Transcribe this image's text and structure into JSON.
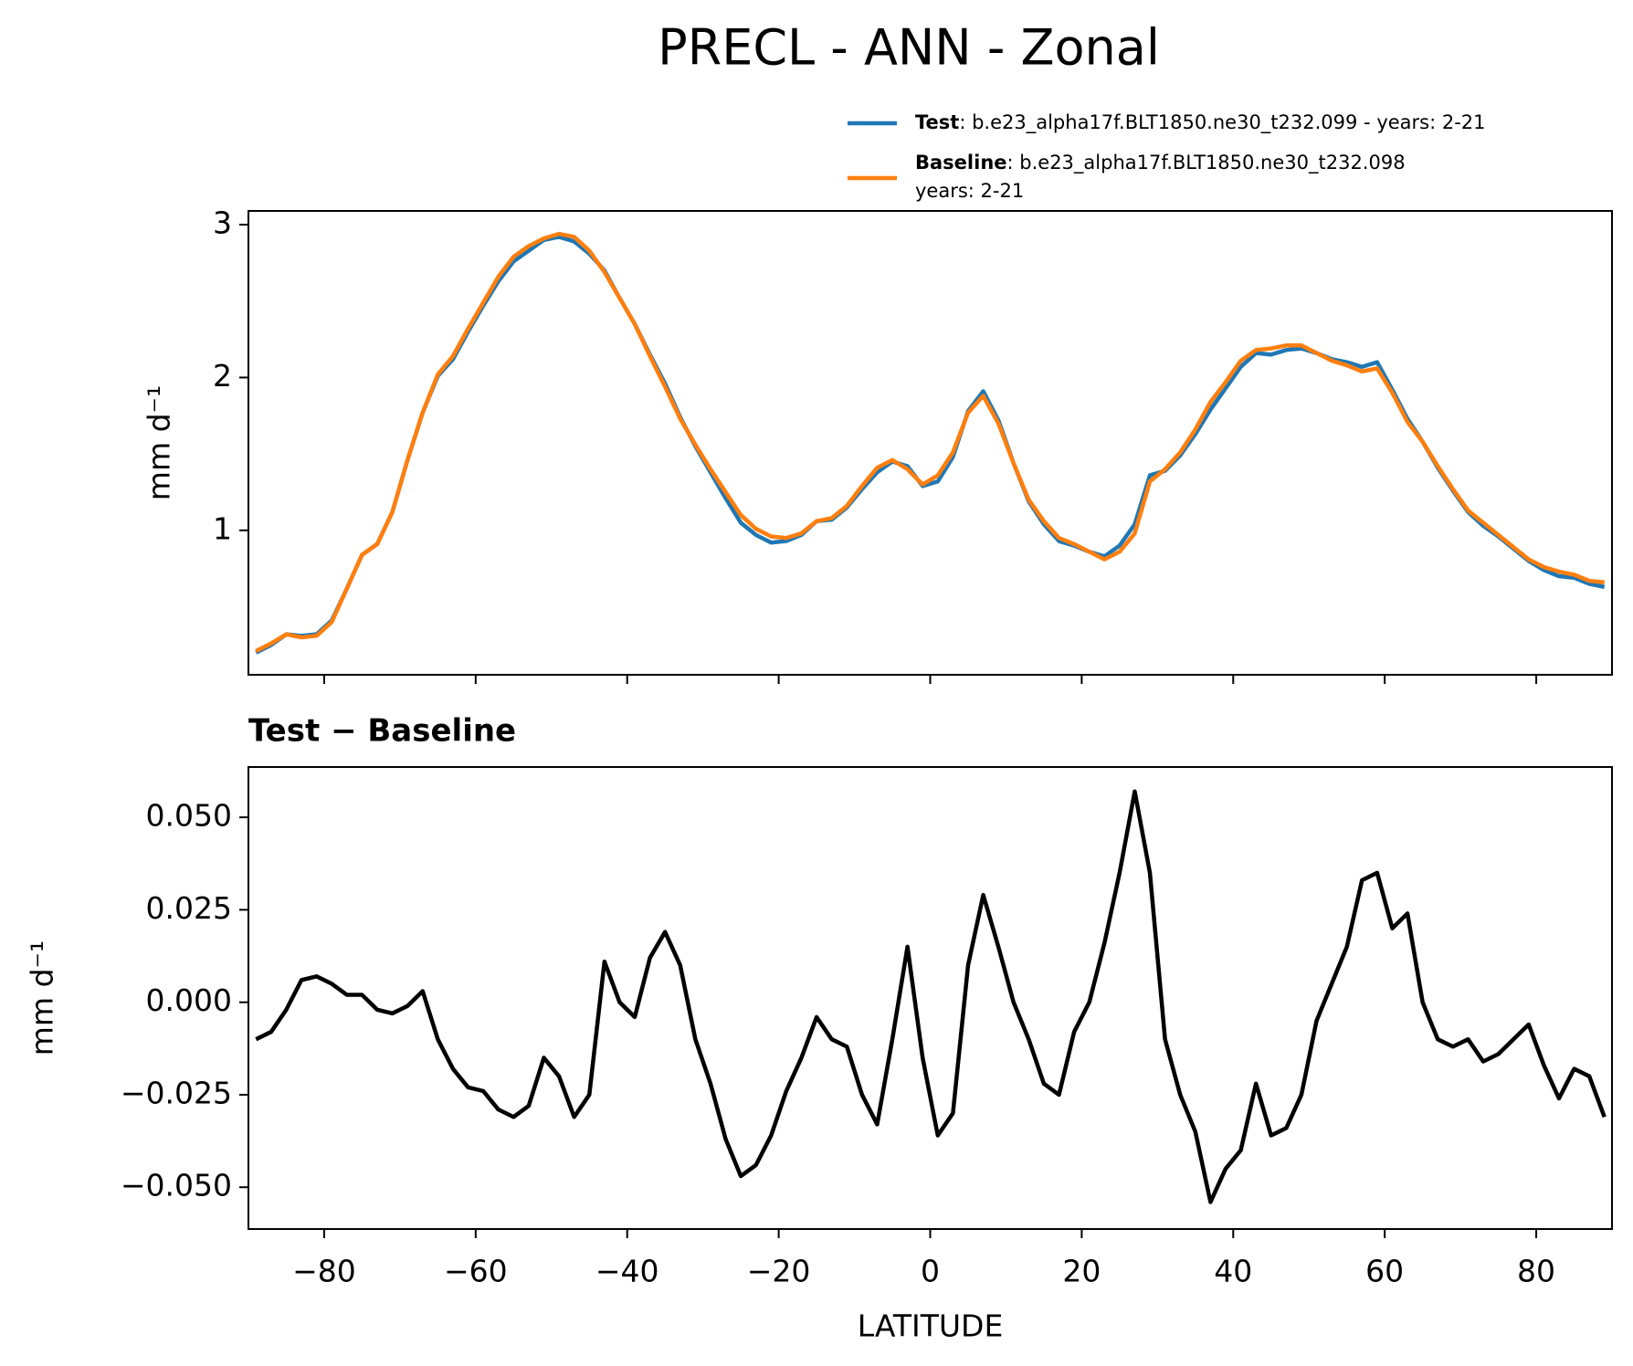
{
  "title": "PRECL - ANN - Zonal",
  "chart_data": [
    {
      "type": "line",
      "x": [
        -89,
        -87,
        -85,
        -83,
        -81,
        -79,
        -77,
        -75,
        -73,
        -71,
        -69,
        -67,
        -65,
        -63,
        -61,
        -59,
        -57,
        -55,
        -53,
        -51,
        -49,
        -47,
        -45,
        -43,
        -41,
        -39,
        -37,
        -35,
        -33,
        -31,
        -29,
        -27,
        -25,
        -23,
        -21,
        -19,
        -17,
        -15,
        -13,
        -11,
        -9,
        -7,
        -5,
        -3,
        -1,
        1,
        3,
        5,
        7,
        9,
        11,
        13,
        15,
        17,
        19,
        21,
        23,
        25,
        27,
        29,
        31,
        33,
        35,
        37,
        39,
        41,
        43,
        45,
        47,
        49,
        51,
        53,
        55,
        57,
        59,
        61,
        63,
        65,
        67,
        69,
        71,
        73,
        75,
        77,
        79,
        81,
        83,
        85,
        87,
        89
      ],
      "ylabel": "mm d⁻¹",
      "xlim": [
        -90,
        90
      ],
      "xticks": [
        -80,
        -60,
        -40,
        -20,
        0,
        20,
        40,
        60,
        80
      ],
      "show_xtick_labels": false,
      "ylim": [
        0.055,
        3.09
      ],
      "yticks": [
        1,
        2,
        3
      ],
      "legend": "upper right",
      "series": [
        {
          "name": "Test",
          "description": [
            ": b.e23_alpha17f.BLT1850.ne30_t232.099 - years: 2-21"
          ],
          "color": "#1f77b4",
          "values": [
            0.2,
            0.25,
            0.32,
            0.31,
            0.32,
            0.41,
            0.62,
            0.84,
            0.91,
            1.12,
            1.46,
            1.77,
            2.01,
            2.12,
            2.3,
            2.47,
            2.63,
            2.76,
            2.83,
            2.9,
            2.92,
            2.89,
            2.81,
            2.7,
            2.52,
            2.35,
            2.15,
            1.96,
            1.74,
            1.55,
            1.38,
            1.21,
            1.05,
            0.97,
            0.92,
            0.93,
            0.97,
            1.06,
            1.07,
            1.15,
            1.27,
            1.38,
            1.45,
            1.42,
            1.29,
            1.32,
            1.48,
            1.78,
            1.91,
            1.72,
            1.44,
            1.19,
            1.04,
            0.93,
            0.9,
            0.86,
            0.83,
            0.9,
            1.04,
            1.36,
            1.39,
            1.49,
            1.63,
            1.79,
            1.93,
            2.07,
            2.16,
            2.15,
            2.18,
            2.19,
            2.16,
            2.12,
            2.1,
            2.07,
            2.1,
            1.92,
            1.73,
            1.58,
            1.41,
            1.26,
            1.12,
            1.03,
            0.96,
            0.88,
            0.8,
            0.74,
            0.7,
            0.69,
            0.65,
            0.63
          ]
        },
        {
          "name": "Baseline",
          "description": [
            ": b.e23_alpha17f.BLT1850.ne30_t232.098",
            "years: 2-21"
          ],
          "color": "#ff7f0e",
          "values": [
            0.21,
            0.26,
            0.32,
            0.3,
            0.31,
            0.4,
            0.62,
            0.84,
            0.91,
            1.12,
            1.46,
            1.77,
            2.02,
            2.14,
            2.32,
            2.49,
            2.66,
            2.79,
            2.86,
            2.91,
            2.94,
            2.92,
            2.83,
            2.69,
            2.52,
            2.35,
            2.14,
            1.94,
            1.73,
            1.56,
            1.4,
            1.25,
            1.1,
            1.01,
            0.96,
            0.95,
            0.98,
            1.06,
            1.08,
            1.16,
            1.29,
            1.41,
            1.46,
            1.4,
            1.3,
            1.36,
            1.51,
            1.77,
            1.88,
            1.7,
            1.44,
            1.2,
            1.06,
            0.95,
            0.91,
            0.86,
            0.81,
            0.86,
            0.98,
            1.32,
            1.4,
            1.51,
            1.66,
            1.84,
            1.97,
            2.11,
            2.18,
            2.19,
            2.21,
            2.21,
            2.16,
            2.11,
            2.08,
            2.04,
            2.06,
            1.9,
            1.71,
            1.58,
            1.42,
            1.27,
            1.13,
            1.05,
            0.97,
            0.89,
            0.81,
            0.76,
            0.73,
            0.71,
            0.67,
            0.66
          ]
        }
      ]
    },
    {
      "type": "line",
      "subtitle": "Test − Baseline",
      "x": [
        -89,
        -87,
        -85,
        -83,
        -81,
        -79,
        -77,
        -75,
        -73,
        -71,
        -69,
        -67,
        -65,
        -63,
        -61,
        -59,
        -57,
        -55,
        -53,
        -51,
        -49,
        -47,
        -45,
        -43,
        -41,
        -39,
        -37,
        -35,
        -33,
        -31,
        -29,
        -27,
        -25,
        -23,
        -21,
        -19,
        -17,
        -15,
        -13,
        -11,
        -9,
        -7,
        -5,
        -3,
        -1,
        1,
        3,
        5,
        7,
        9,
        11,
        13,
        15,
        17,
        19,
        21,
        23,
        25,
        27,
        29,
        31,
        33,
        35,
        37,
        39,
        41,
        43,
        45,
        47,
        49,
        51,
        53,
        55,
        57,
        59,
        61,
        63,
        65,
        67,
        69,
        71,
        73,
        75,
        77,
        79,
        81,
        83,
        85,
        87,
        89
      ],
      "xlabel": "LATITUDE",
      "ylabel": "mm d⁻¹",
      "xlim": [
        -90,
        90
      ],
      "xticks": [
        {
          "value": -80,
          "label": "−80"
        },
        {
          "value": -60,
          "label": "−60"
        },
        {
          "value": -40,
          "label": "−40"
        },
        {
          "value": -20,
          "label": "−20"
        },
        0,
        20,
        40,
        60,
        80
      ],
      "show_xtick_labels": true,
      "ylim": [
        -0.0613,
        0.0636
      ],
      "yticks": [
        {
          "value": -0.05,
          "label": "−0.050"
        },
        {
          "value": -0.025,
          "label": "−0.025"
        },
        {
          "value": 0,
          "label": "0.000"
        },
        {
          "value": 0.025,
          "label": "0.025"
        },
        {
          "value": 0.05,
          "label": "0.050"
        }
      ],
      "series": [
        {
          "color": "#000000",
          "values": [
            -0.01,
            -0.008,
            -0.002,
            0.006,
            0.007,
            0.005,
            0.002,
            0.002,
            -0.002,
            -0.003,
            -0.001,
            0.003,
            -0.01,
            -0.018,
            -0.023,
            -0.024,
            -0.029,
            -0.031,
            -0.028,
            -0.015,
            -0.02,
            -0.031,
            -0.025,
            0.011,
            0.0,
            -0.004,
            0.012,
            0.019,
            0.01,
            -0.01,
            -0.022,
            -0.037,
            -0.047,
            -0.044,
            -0.036,
            -0.024,
            -0.015,
            -0.004,
            -0.01,
            -0.012,
            -0.025,
            -0.033,
            -0.01,
            0.015,
            -0.015,
            -0.036,
            -0.03,
            0.01,
            0.029,
            0.015,
            0.0,
            -0.01,
            -0.022,
            -0.025,
            -0.008,
            0.0,
            0.016,
            0.035,
            0.057,
            0.035,
            -0.01,
            -0.025,
            -0.035,
            -0.054,
            -0.045,
            -0.04,
            -0.022,
            -0.036,
            -0.034,
            -0.025,
            -0.005,
            0.005,
            0.015,
            0.033,
            0.035,
            0.02,
            0.024,
            0.0,
            -0.01,
            -0.012,
            -0.01,
            -0.016,
            -0.014,
            -0.01,
            -0.006,
            -0.017,
            -0.026,
            -0.018,
            -0.02,
            -0.031
          ]
        }
      ]
    }
  ]
}
